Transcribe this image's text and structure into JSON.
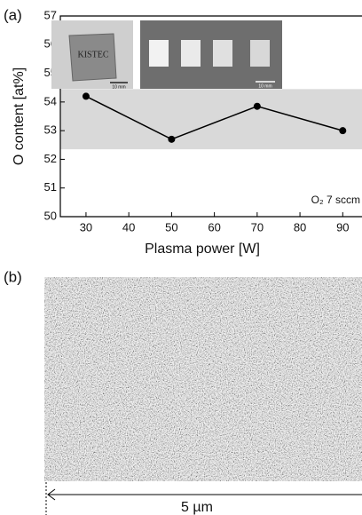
{
  "chart_data": {
    "type": "line",
    "panel_label": "(a)",
    "xlabel": "Plasma power [W]",
    "ylabel": "O content [at%]",
    "annotation": "O₂ 7 sccm",
    "x": [
      30,
      50,
      70,
      90
    ],
    "series": [
      {
        "color": "#000000",
        "values": [
          54.2,
          52.7,
          53.85,
          53.0
        ]
      }
    ],
    "band": [
      52.35,
      54.45
    ],
    "band_color": "#d9d9d9",
    "xlim": [
      24,
      94.5
    ],
    "xticks": [
      30,
      40,
      50,
      60,
      70,
      80,
      90
    ],
    "ylim": [
      50,
      57
    ],
    "yticks": [
      50,
      51,
      52,
      53,
      54,
      55,
      56,
      57
    ]
  },
  "insets": [
    {
      "label": "KISTEC",
      "scale": "10 mm"
    },
    {
      "scale": "10 mm"
    }
  ],
  "image_panel": {
    "panel_label": "(b)",
    "scale_bar": "5 µm"
  }
}
